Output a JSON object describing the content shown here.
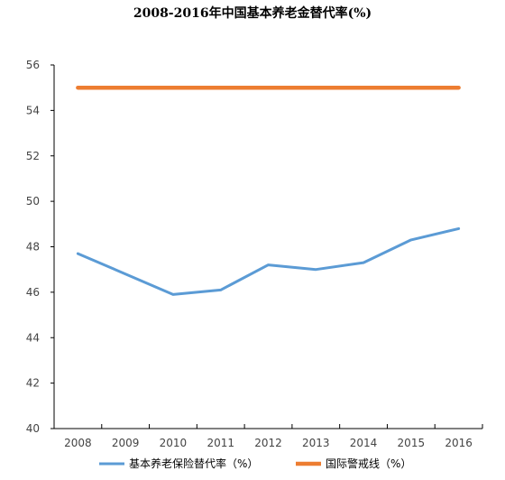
{
  "chart_data": {
    "type": "line",
    "title": "2008-2016年中国基本养老金替代率(%)",
    "xlabel": "",
    "ylabel": "",
    "categories": [
      "2008",
      "2009",
      "2010",
      "2011",
      "2012",
      "2013",
      "2014",
      "2015",
      "2016"
    ],
    "ylim": [
      40,
      56
    ],
    "yticks": [
      40,
      42,
      44,
      46,
      48,
      50,
      52,
      54,
      56
    ],
    "grid": false,
    "legend_position": "bottom",
    "series": [
      {
        "name": "基本养老保险替代率（%）",
        "color": "#5b9bd5",
        "values": [
          47.7,
          46.8,
          45.9,
          46.1,
          47.2,
          47.0,
          47.3,
          48.3,
          48.8
        ]
      },
      {
        "name": "国际警戒线（%）",
        "color": "#ed7d31",
        "values": [
          55,
          55,
          55,
          55,
          55,
          55,
          55,
          55,
          55
        ]
      }
    ]
  }
}
